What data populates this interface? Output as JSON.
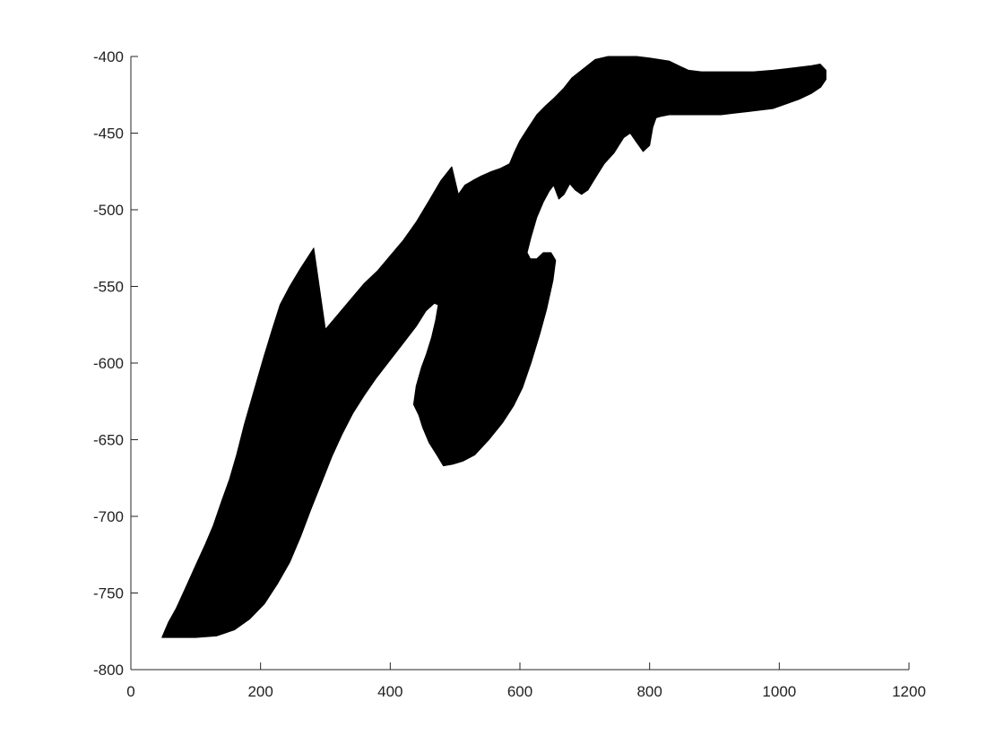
{
  "chart_data": {
    "type": "area",
    "title": "",
    "xlabel": "",
    "ylabel": "",
    "xlim": [
      0,
      1200
    ],
    "ylim": [
      -800,
      -400
    ],
    "grid": false,
    "x_ticks": [
      0,
      200,
      400,
      600,
      800,
      1000,
      1200
    ],
    "y_ticks": [
      -400,
      -450,
      -500,
      -550,
      -600,
      -650,
      -700,
      -750,
      -800
    ],
    "x_tick_labels": [
      "0",
      "200",
      "400",
      "600",
      "800",
      "1000",
      "1200"
    ],
    "y_tick_labels": [
      "-400",
      "-450",
      "-500",
      "-550",
      "-600",
      "-650",
      "-700",
      "-750",
      "-800"
    ],
    "fill_color": "#000000",
    "axis_color": "#262626",
    "series": [
      {
        "points": [
          [
            48,
            -779
          ],
          [
            58,
            -769
          ],
          [
            70,
            -760
          ],
          [
            85,
            -746
          ],
          [
            100,
            -732
          ],
          [
            115,
            -718
          ],
          [
            127,
            -706
          ],
          [
            140,
            -690
          ],
          [
            152,
            -676
          ],
          [
            163,
            -660
          ],
          [
            175,
            -640
          ],
          [
            190,
            -618
          ],
          [
            205,
            -596
          ],
          [
            218,
            -578
          ],
          [
            230,
            -562
          ],
          [
            245,
            -550
          ],
          [
            262,
            -538
          ],
          [
            282,
            -525
          ],
          [
            300,
            -578
          ],
          [
            320,
            -568
          ],
          [
            340,
            -558
          ],
          [
            360,
            -548
          ],
          [
            380,
            -540
          ],
          [
            400,
            -530
          ],
          [
            420,
            -520
          ],
          [
            440,
            -508
          ],
          [
            460,
            -494
          ],
          [
            478,
            -481
          ],
          [
            495,
            -472
          ],
          [
            505,
            -490
          ],
          [
            515,
            -484
          ],
          [
            527,
            -481
          ],
          [
            540,
            -478
          ],
          [
            556,
            -475
          ],
          [
            570,
            -473
          ],
          [
            584,
            -470
          ],
          [
            592,
            -462
          ],
          [
            600,
            -455
          ],
          [
            612,
            -447
          ],
          [
            626,
            -438
          ],
          [
            640,
            -432
          ],
          [
            653,
            -427
          ],
          [
            667,
            -421
          ],
          [
            680,
            -414
          ],
          [
            698,
            -408
          ],
          [
            716,
            -402
          ],
          [
            736,
            -400
          ],
          [
            758,
            -400
          ],
          [
            780,
            -400
          ],
          [
            800,
            -401
          ],
          [
            830,
            -403
          ],
          [
            845,
            -406
          ],
          [
            860,
            -409
          ],
          [
            880,
            -410
          ],
          [
            900,
            -410
          ],
          [
            930,
            -410
          ],
          [
            960,
            -410
          ],
          [
            990,
            -409
          ],
          [
            1010,
            -408
          ],
          [
            1030,
            -407
          ],
          [
            1050,
            -406
          ],
          [
            1063,
            -405
          ],
          [
            1072,
            -409
          ],
          [
            1072,
            -415
          ],
          [
            1064,
            -420
          ],
          [
            1050,
            -424
          ],
          [
            1030,
            -428
          ],
          [
            1010,
            -431
          ],
          [
            990,
            -434
          ],
          [
            970,
            -435
          ],
          [
            950,
            -436
          ],
          [
            930,
            -437
          ],
          [
            910,
            -438
          ],
          [
            890,
            -438
          ],
          [
            870,
            -438
          ],
          [
            850,
            -438
          ],
          [
            830,
            -438
          ],
          [
            818,
            -439
          ],
          [
            810,
            -440
          ],
          [
            805,
            -446
          ],
          [
            800,
            -458
          ],
          [
            790,
            -462
          ],
          [
            780,
            -456
          ],
          [
            770,
            -450
          ],
          [
            760,
            -453
          ],
          [
            745,
            -463
          ],
          [
            730,
            -470
          ],
          [
            718,
            -478
          ],
          [
            705,
            -487
          ],
          [
            695,
            -490
          ],
          [
            685,
            -487
          ],
          [
            677,
            -483
          ],
          [
            668,
            -490
          ],
          [
            660,
            -493
          ],
          [
            652,
            -484
          ],
          [
            645,
            -488
          ],
          [
            636,
            -495
          ],
          [
            626,
            -505
          ],
          [
            617,
            -518
          ],
          [
            611,
            -528
          ],
          [
            616,
            -532
          ],
          [
            626,
            -532
          ],
          [
            636,
            -528
          ],
          [
            648,
            -528
          ],
          [
            655,
            -533
          ],
          [
            651,
            -546
          ],
          [
            641,
            -565
          ],
          [
            630,
            -582
          ],
          [
            617,
            -600
          ],
          [
            604,
            -616
          ],
          [
            590,
            -628
          ],
          [
            573,
            -639
          ],
          [
            552,
            -650
          ],
          [
            530,
            -660
          ],
          [
            512,
            -664
          ],
          [
            496,
            -666
          ],
          [
            482,
            -667
          ],
          [
            472,
            -660
          ],
          [
            460,
            -652
          ],
          [
            450,
            -642
          ],
          [
            444,
            -634
          ],
          [
            436,
            -627
          ],
          [
            440,
            -615
          ],
          [
            448,
            -603
          ],
          [
            456,
            -594
          ],
          [
            464,
            -583
          ],
          [
            470,
            -572
          ],
          [
            474,
            -562
          ],
          [
            468,
            -561
          ],
          [
            455,
            -566
          ],
          [
            440,
            -576
          ],
          [
            420,
            -587
          ],
          [
            398,
            -599
          ],
          [
            378,
            -610
          ],
          [
            360,
            -621
          ],
          [
            342,
            -633
          ],
          [
            325,
            -647
          ],
          [
            310,
            -661
          ],
          [
            294,
            -678
          ],
          [
            278,
            -695
          ],
          [
            262,
            -713
          ],
          [
            245,
            -730
          ],
          [
            226,
            -744
          ],
          [
            206,
            -757
          ],
          [
            183,
            -767
          ],
          [
            160,
            -774
          ],
          [
            132,
            -778
          ],
          [
            100,
            -779
          ],
          [
            70,
            -779
          ],
          [
            48,
            -779
          ]
        ]
      }
    ]
  }
}
